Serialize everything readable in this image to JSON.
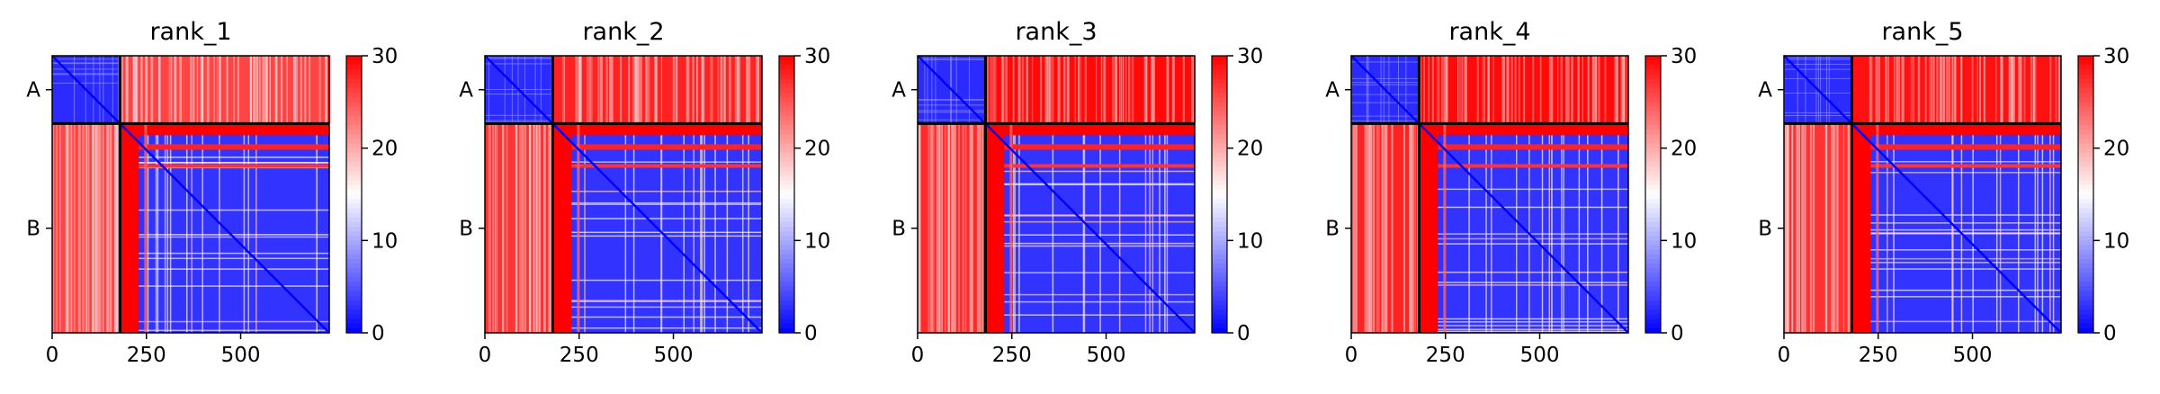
{
  "chart_data": [
    {
      "type": "heatmap",
      "title": "rank_1",
      "x_ticks": [
        0,
        250,
        500
      ],
      "x_range": [
        0,
        735
      ],
      "y_chain_labels": [
        "A",
        "B"
      ],
      "chain_boundary": 180,
      "colorbar": {
        "ticks": [
          0,
          10,
          20,
          30
        ],
        "range": [
          0,
          30
        ],
        "colormap": "bwr"
      },
      "blocks": {
        "A_A": 2.5,
        "A_B": 26,
        "B_A": 26,
        "B_B": 3,
        "boundary_band": 30
      }
    },
    {
      "type": "heatmap",
      "title": "rank_2",
      "x_ticks": [
        0,
        250,
        500
      ],
      "x_range": [
        0,
        735
      ],
      "y_chain_labels": [
        "A",
        "B"
      ],
      "chain_boundary": 180,
      "colorbar": {
        "ticks": [
          0,
          10,
          20,
          30
        ],
        "range": [
          0,
          30
        ],
        "colormap": "bwr"
      },
      "blocks": {
        "A_A": 2.5,
        "A_B": 28,
        "B_A": 27,
        "B_B": 3,
        "boundary_band": 30
      }
    },
    {
      "type": "heatmap",
      "title": "rank_3",
      "x_ticks": [
        0,
        250,
        500
      ],
      "x_range": [
        0,
        735
      ],
      "y_chain_labels": [
        "A",
        "B"
      ],
      "chain_boundary": 180,
      "colorbar": {
        "ticks": [
          0,
          10,
          20,
          30
        ],
        "range": [
          0,
          30
        ],
        "colormap": "bwr"
      },
      "blocks": {
        "A_A": 2.5,
        "A_B": 29.5,
        "B_A": 27.5,
        "B_B": 3,
        "boundary_band": 30
      }
    },
    {
      "type": "heatmap",
      "title": "rank_4",
      "x_ticks": [
        0,
        250,
        500
      ],
      "x_range": [
        0,
        735
      ],
      "y_chain_labels": [
        "A",
        "B"
      ],
      "chain_boundary": 180,
      "colorbar": {
        "ticks": [
          0,
          10,
          20,
          30
        ],
        "range": [
          0,
          30
        ],
        "colormap": "bwr"
      },
      "blocks": {
        "A_A": 2.5,
        "A_B": 29.5,
        "B_A": 28,
        "B_B": 3,
        "boundary_band": 30
      }
    },
    {
      "type": "heatmap",
      "title": "rank_5",
      "x_ticks": [
        0,
        250,
        500
      ],
      "x_range": [
        0,
        735
      ],
      "y_chain_labels": [
        "A",
        "B"
      ],
      "chain_boundary": 180,
      "colorbar": {
        "ticks": [
          0,
          10,
          20,
          30
        ],
        "range": [
          0,
          30
        ],
        "colormap": "bwr"
      },
      "blocks": {
        "A_A": 2.5,
        "A_B": 29,
        "B_A": 27,
        "B_B": 3,
        "boundary_band": 30
      }
    }
  ]
}
